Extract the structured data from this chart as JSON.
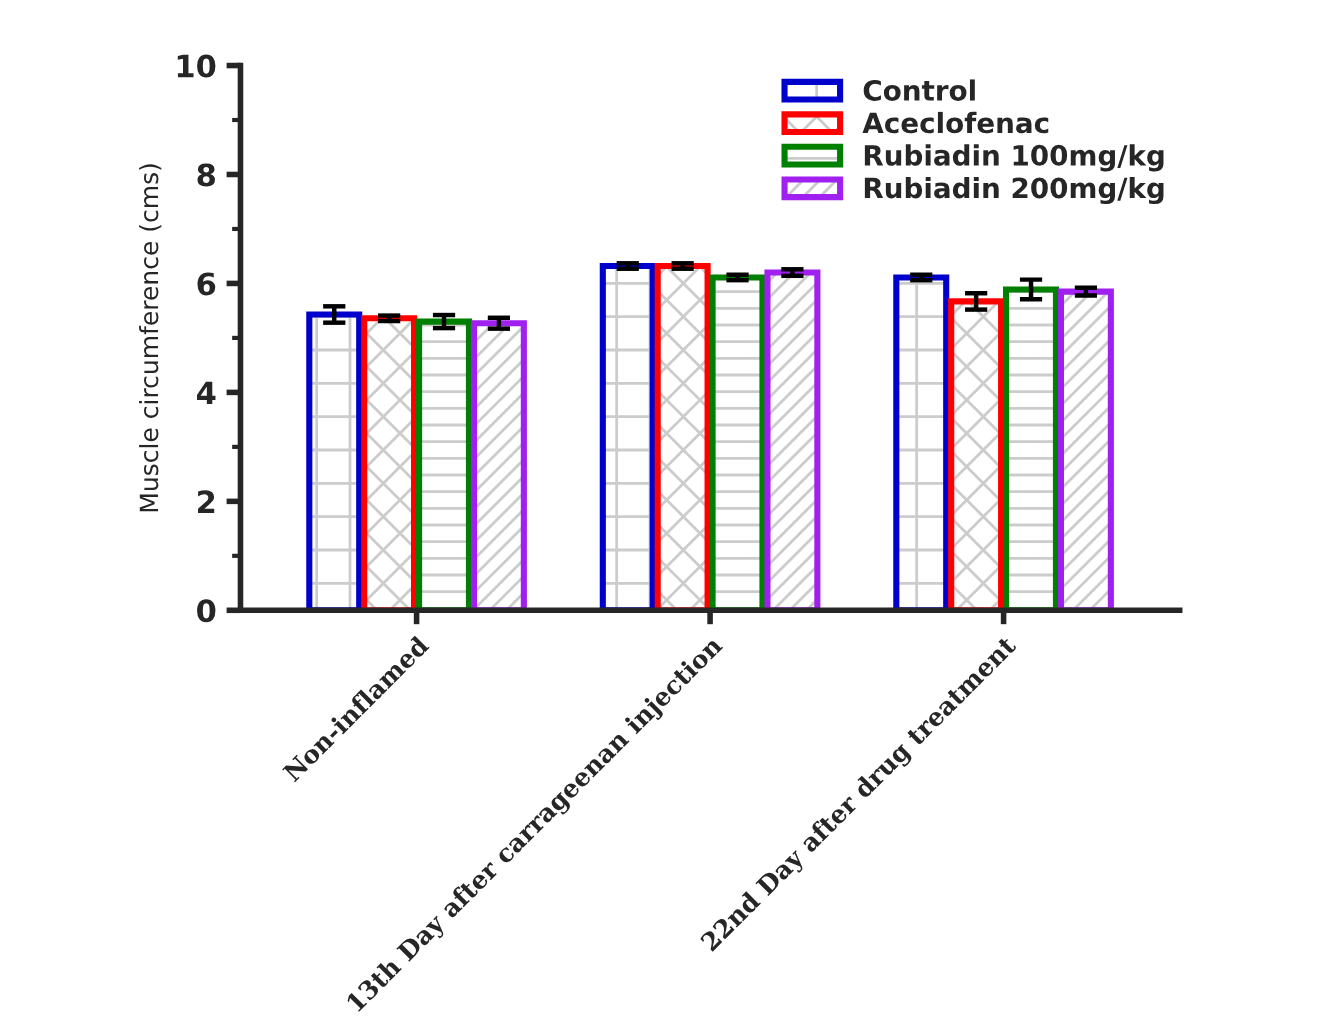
{
  "chart_data": {
    "type": "bar",
    "ylabel": "Muscle circumference (cms)",
    "categories": [
      "Non-inflamed",
      "13th Day after carrageenan injection",
      "22nd Day after drug treatment"
    ],
    "series": [
      {
        "name": "Control",
        "color": "#0000cc",
        "values": [
          5.43,
          6.32,
          6.11
        ],
        "errors": [
          0.15,
          0.05,
          0.05
        ]
      },
      {
        "name": "Aceclofenac",
        "color": "#ff0000",
        "values": [
          5.36,
          6.32,
          5.67
        ],
        "errors": [
          0.05,
          0.05,
          0.15
        ]
      },
      {
        "name": "Rubiadin 100mg/kg",
        "color": "#008000",
        "values": [
          5.3,
          6.11,
          5.89
        ],
        "errors": [
          0.12,
          0.05,
          0.18
        ]
      },
      {
        "name": "Rubiadin 200mg/kg",
        "color": "#a020f0",
        "values": [
          5.27,
          6.2,
          5.85
        ],
        "errors": [
          0.1,
          0.06,
          0.07
        ]
      }
    ],
    "ylim": [
      0,
      10
    ],
    "yticks": [
      0,
      2,
      4,
      6,
      8,
      10
    ],
    "legend": "top right",
    "grid": false
  }
}
